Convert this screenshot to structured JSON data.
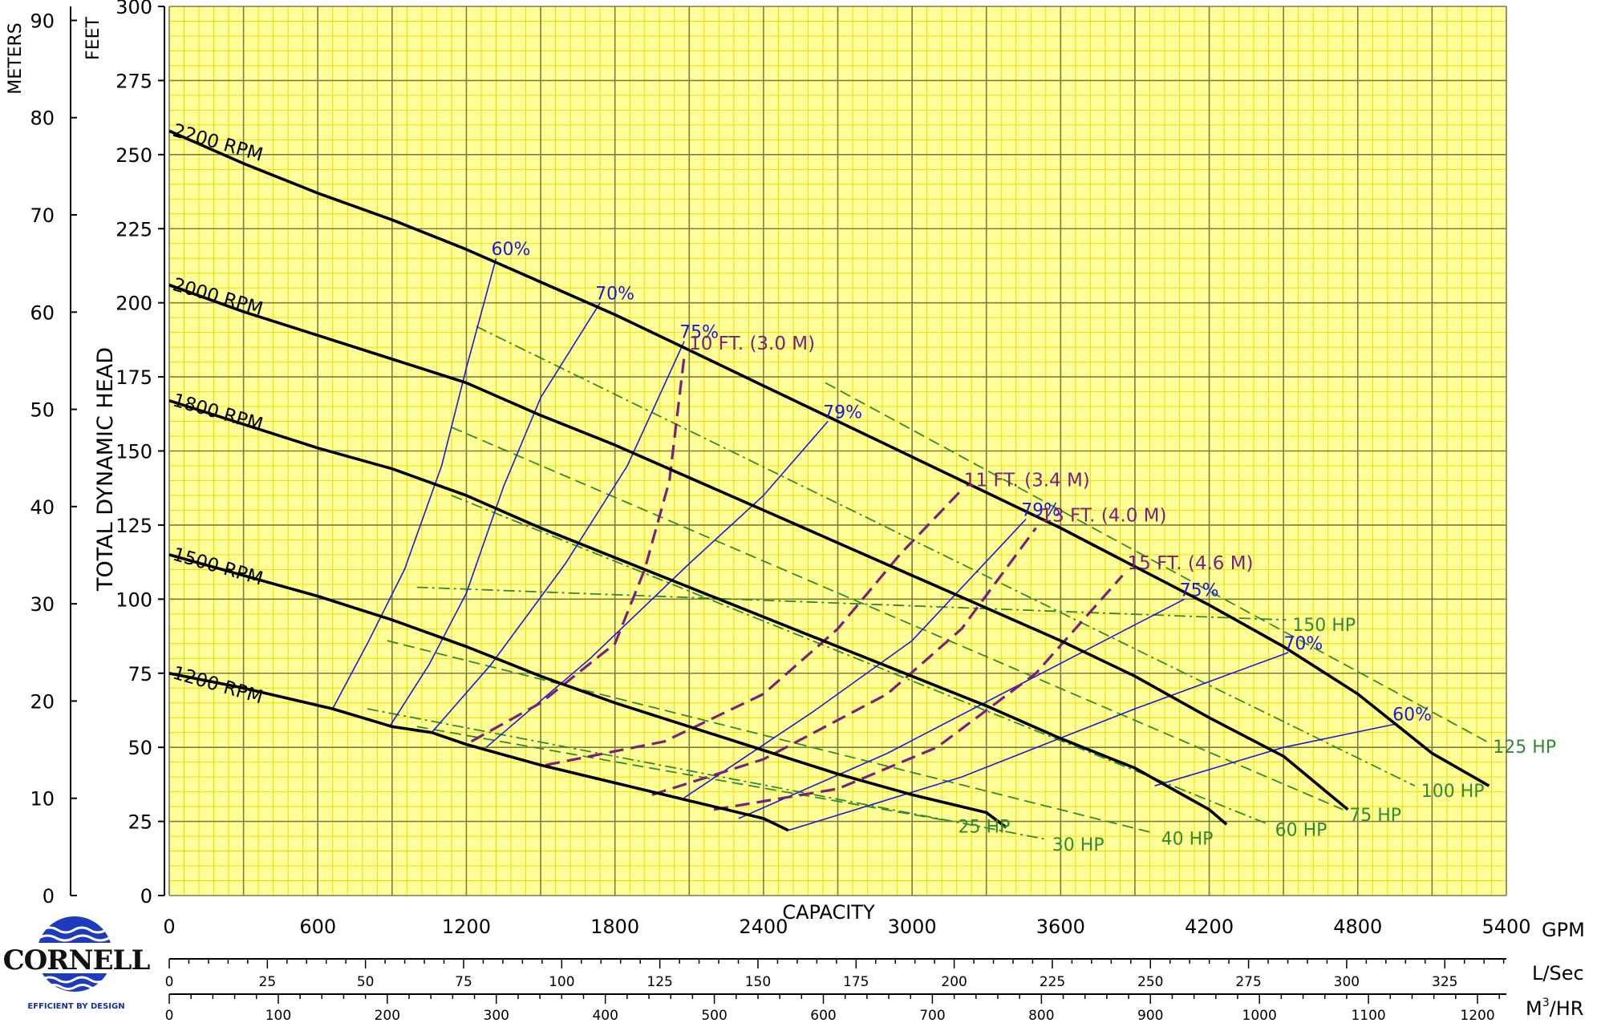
{
  "brand": {
    "name": "CORNELL",
    "tagline": "EFFICIENT BY DESIGN",
    "registered": "®",
    "color": "#1f3bbd"
  },
  "chart_data": {
    "type": "line",
    "title": "",
    "xlabel": "CAPACITY",
    "ylabel": "TOTAL DYNAMIC HEAD",
    "grid": true,
    "xlim": [
      0,
      5400
    ],
    "ylim": [
      0,
      300
    ],
    "x_unit": "GPM",
    "y_unit": "FEET",
    "x_ticks": [
      0,
      600,
      1200,
      1800,
      2400,
      3000,
      3600,
      4200,
      4800,
      5400
    ],
    "y_ticks": [
      0,
      25,
      50,
      75,
      100,
      125,
      150,
      175,
      200,
      225,
      250,
      275,
      300
    ],
    "meters_axis": {
      "label": "METERS",
      "ticks": [
        0,
        10,
        20,
        30,
        40,
        50,
        60,
        70,
        80,
        90
      ]
    },
    "lsec_axis": {
      "label": "L/Sec",
      "ticks": [
        0,
        25,
        50,
        75,
        100,
        125,
        150,
        175,
        200,
        225,
        250,
        275,
        300,
        325
      ]
    },
    "m3hr_axis": {
      "label": "M",
      "sup": "3",
      "suffix": "/HR",
      "ticks": [
        0,
        100,
        200,
        300,
        400,
        500,
        600,
        700,
        800,
        900,
        1000,
        1100,
        1200
      ]
    },
    "colors": {
      "grid_minor": "#f0dc00",
      "grid_major": "#807a3c",
      "background": "#ffff99",
      "rpm": "#000000",
      "efficiency": "#1a1adb",
      "npsh": "#7a1f7a",
      "hp": "#2e8b2e"
    },
    "rpm_curves": [
      {
        "name": "2200 RPM",
        "points": [
          [
            0,
            258
          ],
          [
            300,
            247
          ],
          [
            600,
            237
          ],
          [
            900,
            228
          ],
          [
            1200,
            218
          ],
          [
            1500,
            207
          ],
          [
            1800,
            196
          ],
          [
            2100,
            184
          ],
          [
            2400,
            172
          ],
          [
            2700,
            160
          ],
          [
            3000,
            148
          ],
          [
            3300,
            136
          ],
          [
            3600,
            124
          ],
          [
            3900,
            111
          ],
          [
            4200,
            98
          ],
          [
            4500,
            84
          ],
          [
            4800,
            68
          ],
          [
            5100,
            48
          ],
          [
            5330,
            37
          ]
        ]
      },
      {
        "name": "2000 RPM",
        "points": [
          [
            0,
            206
          ],
          [
            300,
            197
          ],
          [
            600,
            189
          ],
          [
            900,
            181
          ],
          [
            1200,
            173
          ],
          [
            1500,
            162
          ],
          [
            1800,
            152
          ],
          [
            2100,
            141
          ],
          [
            2400,
            130
          ],
          [
            2700,
            119
          ],
          [
            3000,
            108
          ],
          [
            3300,
            97
          ],
          [
            3600,
            86
          ],
          [
            3900,
            74
          ],
          [
            4200,
            60
          ],
          [
            4500,
            47
          ],
          [
            4760,
            29
          ]
        ]
      },
      {
        "name": "1800 RPM",
        "points": [
          [
            0,
            167
          ],
          [
            300,
            159
          ],
          [
            600,
            151
          ],
          [
            900,
            144
          ],
          [
            1200,
            135
          ],
          [
            1500,
            124
          ],
          [
            1800,
            114
          ],
          [
            2100,
            104
          ],
          [
            2400,
            94
          ],
          [
            2700,
            84
          ],
          [
            3000,
            74
          ],
          [
            3300,
            64
          ],
          [
            3600,
            53
          ],
          [
            3900,
            43
          ],
          [
            4200,
            29
          ],
          [
            4270,
            24
          ]
        ]
      },
      {
        "name": "1500 RPM",
        "points": [
          [
            0,
            115
          ],
          [
            300,
            108
          ],
          [
            600,
            101
          ],
          [
            900,
            93
          ],
          [
            1200,
            84
          ],
          [
            1500,
            74
          ],
          [
            1800,
            65
          ],
          [
            2100,
            57
          ],
          [
            2400,
            49
          ],
          [
            2700,
            41
          ],
          [
            3000,
            34
          ],
          [
            3300,
            28
          ],
          [
            3380,
            23
          ]
        ]
      },
      {
        "name": "1200 RPM",
        "points": [
          [
            0,
            75
          ],
          [
            300,
            70
          ],
          [
            660,
            63
          ],
          [
            900,
            57
          ],
          [
            1060,
            55
          ],
          [
            1200,
            51
          ],
          [
            1500,
            44
          ],
          [
            1800,
            38
          ],
          [
            2100,
            32
          ],
          [
            2400,
            26
          ],
          [
            2500,
            22
          ]
        ]
      }
    ],
    "efficiency_curves": [
      {
        "name": "60%",
        "points": [
          [
            660,
            63
          ],
          [
            800,
            85
          ],
          [
            950,
            110
          ],
          [
            1100,
            145
          ],
          [
            1200,
            178
          ],
          [
            1320,
            215
          ]
        ]
      },
      {
        "name": "70%",
        "points": [
          [
            890,
            57
          ],
          [
            1050,
            78
          ],
          [
            1200,
            102
          ],
          [
            1350,
            138
          ],
          [
            1500,
            168
          ],
          [
            1740,
            200
          ]
        ]
      },
      {
        "name": "75%",
        "points": [
          [
            1060,
            55
          ],
          [
            1300,
            78
          ],
          [
            1600,
            112
          ],
          [
            1850,
            145
          ],
          [
            2080,
            187
          ]
        ]
      },
      {
        "name": "79%",
        "points": [
          [
            1280,
            50
          ],
          [
            1700,
            80
          ],
          [
            2100,
            112
          ],
          [
            2400,
            135
          ],
          [
            2660,
            160
          ]
        ]
      },
      {
        "name": "79%",
        "points": [
          [
            2080,
            33
          ],
          [
            2600,
            62
          ],
          [
            3000,
            86
          ],
          [
            3460,
            127
          ]
        ]
      },
      {
        "name": "75%",
        "points": [
          [
            2300,
            26
          ],
          [
            2900,
            48
          ],
          [
            3500,
            74
          ],
          [
            4100,
            100
          ]
        ]
      },
      {
        "name": "70%",
        "points": [
          [
            2500,
            22
          ],
          [
            3200,
            40
          ],
          [
            3900,
            63
          ],
          [
            4520,
            82
          ]
        ]
      },
      {
        "name": "60%",
        "points": [
          [
            3980,
            37
          ],
          [
            4500,
            50
          ],
          [
            4960,
            58
          ]
        ]
      }
    ],
    "npsh_curves": [
      {
        "name": "10 FT. (3.0 M)",
        "points": [
          [
            1220,
            52
          ],
          [
            1500,
            65
          ],
          [
            1800,
            85
          ],
          [
            1920,
            110
          ],
          [
            2020,
            140
          ],
          [
            2080,
            182
          ]
        ]
      },
      {
        "name": "11 FT. (3.4 M)",
        "points": [
          [
            1520,
            44
          ],
          [
            2000,
            52
          ],
          [
            2400,
            68
          ],
          [
            2700,
            90
          ],
          [
            2950,
            115
          ],
          [
            3190,
            136
          ]
        ]
      },
      {
        "name": "13 FT. (4.0 M)",
        "points": [
          [
            1950,
            34
          ],
          [
            2400,
            46
          ],
          [
            2900,
            68
          ],
          [
            3200,
            90
          ],
          [
            3500,
            124
          ]
        ]
      },
      {
        "name": "15 FT. (4.6 M)",
        "points": [
          [
            2200,
            29
          ],
          [
            2700,
            36
          ],
          [
            3100,
            50
          ],
          [
            3500,
            75
          ],
          [
            3850,
            108
          ]
        ]
      }
    ],
    "hp_lines": [
      {
        "name": "25 HP",
        "style": "dashed",
        "points": [
          [
            1000,
            57
          ],
          [
            3160,
            25
          ]
        ]
      },
      {
        "name": "30 HP",
        "style": "dashdot",
        "points": [
          [
            800,
            63
          ],
          [
            3540,
            19
          ]
        ]
      },
      {
        "name": "40 HP",
        "style": "dashed",
        "points": [
          [
            880,
            86
          ],
          [
            3980,
            21
          ]
        ]
      },
      {
        "name": "60 HP",
        "style": "dashdot",
        "points": [
          [
            1140,
            135
          ],
          [
            4440,
            24
          ]
        ]
      },
      {
        "name": "75 HP",
        "style": "dashed",
        "points": [
          [
            1140,
            158
          ],
          [
            4740,
            29
          ]
        ]
      },
      {
        "name": "100 HP",
        "style": "dashdot",
        "points": [
          [
            1240,
            192
          ],
          [
            5030,
            37
          ]
        ]
      },
      {
        "name": "125 HP",
        "style": "dashed",
        "points": [
          [
            2650,
            173
          ],
          [
            5320,
            52
          ]
        ]
      },
      {
        "name": "150 HP",
        "style": "dashdot",
        "points": [
          [
            1000,
            104
          ],
          [
            4510,
            93
          ]
        ]
      }
    ]
  }
}
